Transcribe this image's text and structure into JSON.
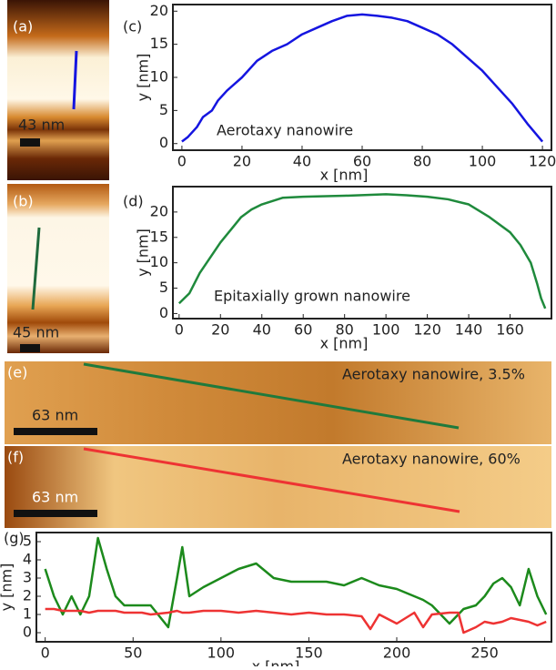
{
  "images": [
    {
      "label": "(a)",
      "scale": "43 nm"
    },
    {
      "label": "(b)",
      "scale": "45 nm"
    },
    {
      "label": "(e)",
      "scale": "63 nm",
      "caption": "Aerotaxy nanowire, 3.5%"
    },
    {
      "label": "(f)",
      "scale": "63 nm",
      "caption": "Aerotaxy nanowire, 60%"
    }
  ],
  "chart_data": [
    {
      "type": "line",
      "panel_label": "(c)",
      "annotation": "Aerotaxy nanowire",
      "x_label": "x [nm]",
      "y_label": "y [nm]",
      "x": [
        0,
        2,
        5,
        7,
        10,
        12,
        15,
        20,
        25,
        30,
        35,
        40,
        45,
        50,
        55,
        60,
        65,
        70,
        75,
        80,
        85,
        90,
        95,
        100,
        105,
        110,
        115,
        120
      ],
      "series": [
        {
          "color": "#1515e0",
          "values": [
            0.3,
            1,
            2.5,
            4,
            5,
            6.5,
            8,
            10,
            12.5,
            14,
            15,
            16.5,
            17.5,
            18.5,
            19.3,
            19.5,
            19.3,
            19,
            18.5,
            17.5,
            16.5,
            15,
            13,
            11,
            8.5,
            6,
            3,
            0.3
          ]
        }
      ],
      "xlim": [
        -3,
        123
      ],
      "ylim": [
        -1,
        21
      ],
      "xticks": [
        0,
        20,
        40,
        60,
        80,
        100,
        120
      ],
      "yticks": [
        0,
        5,
        10,
        15,
        20
      ]
    },
    {
      "type": "line",
      "panel_label": "(d)",
      "annotation": "Epitaxially grown nanowire",
      "x_label": "x [nm]",
      "y_label": "y [nm]",
      "x": [
        0,
        5,
        10,
        15,
        20,
        25,
        30,
        35,
        40,
        50,
        60,
        80,
        100,
        110,
        120,
        130,
        140,
        150,
        160,
        165,
        170,
        173,
        175,
        177
      ],
      "series": [
        {
          "color": "#1f8a3c",
          "values": [
            2,
            4,
            8,
            11,
            14,
            16.5,
            19,
            20.5,
            21.5,
            22.8,
            23,
            23.2,
            23.5,
            23.3,
            23,
            22.5,
            21.5,
            19,
            16,
            13.5,
            10,
            6,
            3,
            1
          ]
        }
      ],
      "xlim": [
        -3,
        180
      ],
      "ylim": [
        -1,
        25
      ],
      "xticks": [
        0,
        20,
        40,
        60,
        80,
        100,
        120,
        140,
        160
      ],
      "yticks": [
        0,
        5,
        10,
        15,
        20
      ]
    },
    {
      "type": "line",
      "panel_label": "(g)",
      "x_label": "x [nm]",
      "y_label": "y [nm]",
      "x": [
        0,
        5,
        10,
        15,
        20,
        25,
        30,
        35,
        40,
        45,
        55,
        60,
        70,
        75,
        78,
        82,
        90,
        100,
        110,
        120,
        130,
        140,
        150,
        160,
        170,
        180,
        185,
        190,
        200,
        210,
        215,
        220,
        230,
        235,
        238,
        245,
        250,
        255,
        260,
        265,
        270,
        275,
        280,
        285
      ],
      "series": [
        {
          "color": "#1c8a1c",
          "values": [
            3.5,
            2,
            1,
            2,
            1,
            2,
            5.2,
            3.5,
            2,
            1.5,
            1.5,
            1.5,
            0.3,
            3,
            4.7,
            2,
            2.5,
            3,
            3.5,
            3.8,
            3,
            2.8,
            2.8,
            2.8,
            2.6,
            3,
            2.8,
            2.6,
            2.4,
            2,
            1.8,
            1.5,
            0.5,
            1,
            1.3,
            1.5,
            2,
            2.7,
            3,
            2.5,
            1.5,
            3.5,
            2,
            1
          ]
        },
        {
          "color": "#ee3333",
          "values": [
            1.3,
            1.3,
            1.2,
            1.2,
            1.2,
            1.1,
            1.2,
            1.2,
            1.2,
            1.1,
            1.1,
            1.0,
            1.1,
            1.2,
            1.1,
            1.1,
            1.2,
            1.2,
            1.1,
            1.2,
            1.1,
            1.0,
            1.1,
            1.0,
            1.0,
            0.9,
            0.2,
            1.0,
            0.5,
            1.1,
            0.3,
            1.0,
            1.1,
            1.1,
            0.0,
            0.3,
            0.6,
            0.5,
            0.6,
            0.8,
            0.7,
            0.6,
            0.4,
            0.6
          ]
        }
      ],
      "xlim": [
        -5,
        288
      ],
      "ylim": [
        -0.5,
        5.5
      ],
      "xticks": [
        0,
        50,
        100,
        150,
        200,
        250
      ],
      "yticks": [
        0,
        1,
        2,
        3,
        4,
        5
      ]
    }
  ]
}
